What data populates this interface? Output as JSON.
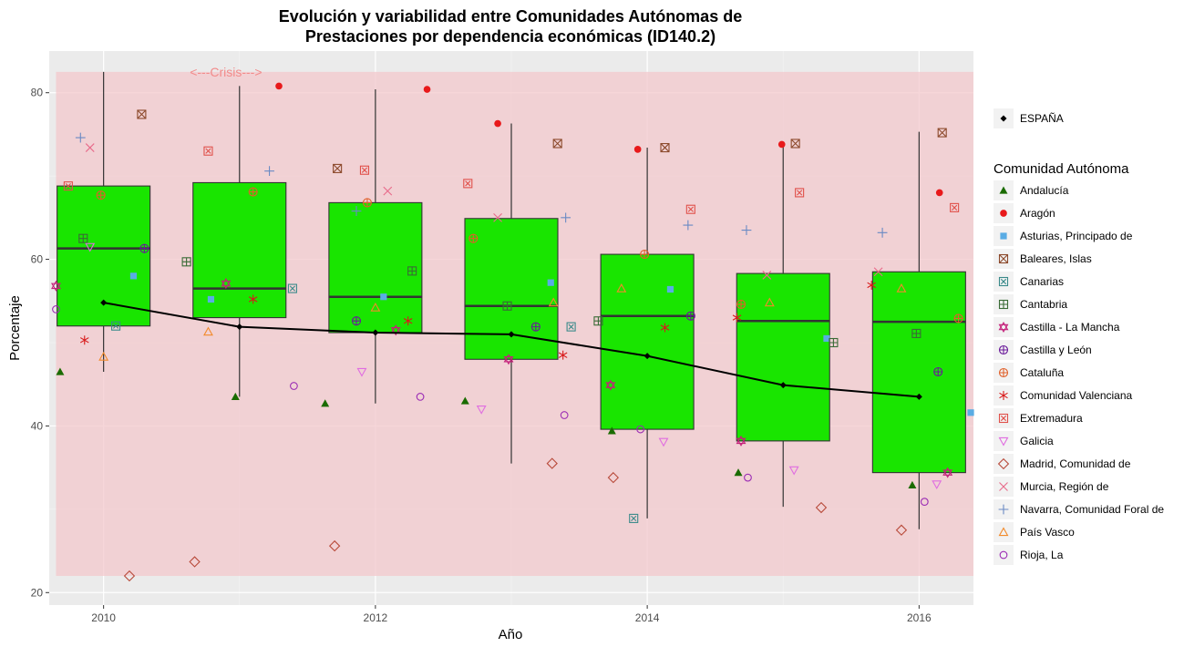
{
  "chart_data": {
    "type": "boxplot",
    "title_lines": [
      "Evolución y variabilidad entre Comunidades Autónomas de",
      "Prestaciones por dependencia económicas (ID140.2)"
    ],
    "xlabel": "Año",
    "ylabel": "Porcentaje",
    "x_ticks": [
      2010,
      2012,
      2014,
      2016
    ],
    "y_ticks": [
      20,
      40,
      60,
      80
    ],
    "xlim": [
      2009.6,
      2016.4
    ],
    "ylim": [
      18.5,
      85
    ],
    "grid": true,
    "colors": {
      "panel_bg": "#ebebeb",
      "crisis_band": "#f3c8cc",
      "box_fill": "#19e500",
      "box_stroke": "#000000",
      "median": "#333333",
      "espana_line": "#000000",
      "annotation": "#f28a8a"
    },
    "crisis_band": {
      "x": [
        2009.65,
        2016.4
      ],
      "y": [
        22,
        82.5
      ]
    },
    "annotation": {
      "text": "<---Crisis--->",
      "x": 2010.9,
      "y": 82.5
    },
    "boxes": [
      {
        "year": 2010,
        "q1": 52.0,
        "median": 61.3,
        "q3": 68.8,
        "whisker_low": 46.5,
        "whisker_high": 82.5
      },
      {
        "year": 2011,
        "q1": 53.0,
        "median": 56.5,
        "q3": 69.2,
        "whisker_low": 43.5,
        "whisker_high": 80.8
      },
      {
        "year": 2012,
        "q1": 51.2,
        "median": 55.5,
        "q3": 66.8,
        "whisker_low": 42.7,
        "whisker_high": 80.4
      },
      {
        "year": 2013,
        "q1": 48.0,
        "median": 54.4,
        "q3": 64.9,
        "whisker_low": 35.5,
        "whisker_high": 76.3
      },
      {
        "year": 2014,
        "q1": 39.6,
        "median": 53.2,
        "q3": 60.6,
        "whisker_low": 28.9,
        "whisker_high": 73.4
      },
      {
        "year": 2015,
        "q1": 38.2,
        "median": 52.6,
        "q3": 58.3,
        "whisker_low": 30.3,
        "whisker_high": 74.0
      },
      {
        "year": 2016,
        "q1": 34.4,
        "median": 52.5,
        "q3": 58.5,
        "whisker_low": 27.6,
        "whisker_high": 75.3
      }
    ],
    "espana": {
      "name": "ESPAÑA",
      "x": [
        2010,
        2011,
        2012,
        2013,
        2014,
        2015,
        2016
      ],
      "y": [
        54.8,
        51.9,
        51.2,
        51.0,
        48.4,
        44.9,
        43.5
      ]
    },
    "legend_title": "Comunidad Autónoma",
    "series": [
      {
        "name": "Andalucía",
        "shape": "triangle-filled",
        "color": "#1a6b00",
        "x": [
          2009.68,
          2010.97,
          2011.63,
          2012.66,
          2013.74,
          2014.67,
          2015.95
        ],
        "y": [
          46.5,
          43.5,
          42.7,
          43.0,
          39.4,
          34.4,
          32.9
        ]
      },
      {
        "name": "Aragón",
        "shape": "circle-filled",
        "color": "#e8191b",
        "x": [
          2011.29,
          2012.38,
          2012.9,
          2013.93,
          2014.99,
          2016.15
        ],
        "y": [
          80.8,
          80.4,
          76.3,
          73.2,
          73.8,
          68.0
        ]
      },
      {
        "name": "Asturias, Principado de",
        "shape": "square-filled",
        "color": "#5aace4",
        "x": [
          2010.22,
          2010.79,
          2012.06,
          2013.29,
          2014.17,
          2015.32,
          2016.38
        ],
        "y": [
          58.0,
          55.2,
          55.5,
          57.2,
          56.4,
          50.5,
          41.6
        ]
      },
      {
        "name": "Baleares, Islas",
        "shape": "square-cross",
        "color": "#8c4a2c",
        "x": [
          2010.28,
          2011.72,
          2013.34,
          2014.13,
          2015.09,
          2016.17
        ],
        "y": [
          77.4,
          70.9,
          73.9,
          73.4,
          73.9,
          75.2
        ]
      },
      {
        "name": "Canarias",
        "shape": "square-x",
        "color": "#3a8a8a",
        "x": [
          2010.09,
          2011.39,
          2013.44,
          2013.9
        ],
        "y": [
          52.0,
          56.5,
          51.9,
          28.9
        ]
      },
      {
        "name": "Cantabria",
        "shape": "square-plus",
        "color": "#3a6b36",
        "x": [
          2009.85,
          2010.61,
          2012.27,
          2012.97,
          2013.64,
          2015.37,
          2015.98
        ],
        "y": [
          62.5,
          59.7,
          58.6,
          54.4,
          52.6,
          50.0,
          51.1
        ]
      },
      {
        "name": "Castilla - La Mancha",
        "shape": "star-david",
        "color": "#c4207a",
        "x": [
          2009.65,
          2010.9,
          2012.15,
          2012.98,
          2013.73,
          2014.69,
          2016.21
        ],
        "y": [
          56.8,
          57.1,
          51.5,
          48.0,
          44.9,
          38.2,
          34.4
        ]
      },
      {
        "name": "Castilla y León",
        "shape": "circle-plus",
        "color": "#6a1a9a",
        "x": [
          2010.3,
          2011.86,
          2013.18,
          2014.32,
          2016.14
        ],
        "y": [
          61.3,
          52.6,
          51.9,
          53.2,
          46.5
        ]
      },
      {
        "name": "Cataluña",
        "shape": "circle-plus",
        "color": "#e0602a",
        "x": [
          2009.98,
          2011.1,
          2011.94,
          2012.72,
          2013.98,
          2014.69,
          2016.29
        ],
        "y": [
          67.7,
          68.1,
          66.8,
          62.5,
          60.6,
          54.6,
          52.9
        ]
      },
      {
        "name": "Comunidad Valenciana",
        "shape": "asterisk",
        "color": "#d81a1a",
        "x": [
          2009.86,
          2011.1,
          2012.24,
          2013.38,
          2014.13,
          2014.66,
          2015.65
        ],
        "y": [
          50.3,
          55.2,
          52.6,
          48.5,
          51.8,
          53.0,
          56.9
        ]
      },
      {
        "name": "Extremadura",
        "shape": "square-x",
        "color": "#e0504a",
        "x": [
          2009.74,
          2010.77,
          2011.92,
          2012.68,
          2014.32,
          2015.12,
          2016.26
        ],
        "y": [
          68.8,
          73.0,
          70.7,
          69.1,
          66.0,
          68.0,
          66.2
        ]
      },
      {
        "name": "Galicia",
        "shape": "triangle-down",
        "color": "#e06ee0",
        "x": [
          2009.9,
          2011.9,
          2012.78,
          2014.12,
          2015.08,
          2016.13
        ],
        "y": [
          61.5,
          46.5,
          42.0,
          38.1,
          34.7,
          33.0
        ]
      },
      {
        "name": "Madrid, Comunidad de",
        "shape": "diamond",
        "color": "#b84a3a",
        "x": [
          2010.19,
          2010.67,
          2011.7,
          2013.3,
          2013.75,
          2015.28,
          2015.87
        ],
        "y": [
          22.0,
          23.7,
          25.6,
          35.5,
          33.8,
          30.2,
          27.5
        ]
      },
      {
        "name": "Murcia, Región de",
        "shape": "x",
        "color": "#e86a8a",
        "x": [
          2009.9,
          2012.09,
          2012.9,
          2014.88,
          2015.7
        ],
        "y": [
          73.4,
          68.2,
          65.0,
          58.1,
          58.5
        ]
      },
      {
        "name": "Navarra, Comunidad Foral de",
        "shape": "plus",
        "color": "#6a8ac4",
        "x": [
          2009.83,
          2011.22,
          2011.86,
          2013.4,
          2014.3,
          2014.73,
          2015.73
        ],
        "y": [
          74.6,
          70.6,
          65.8,
          65.0,
          64.1,
          63.5,
          63.2
        ]
      },
      {
        "name": "País Vasco",
        "shape": "triangle-up",
        "color": "#f28a2a",
        "x": [
          2010.0,
          2010.77,
          2012.0,
          2013.31,
          2013.81,
          2014.9,
          2015.87
        ],
        "y": [
          48.3,
          51.3,
          54.2,
          54.8,
          56.5,
          54.8,
          56.5
        ]
      },
      {
        "name": "Rioja, La",
        "shape": "circle",
        "color": "#9a2ab4",
        "x": [
          2009.65,
          2011.4,
          2012.33,
          2013.39,
          2013.95,
          2014.74,
          2016.04
        ],
        "y": [
          54.0,
          44.8,
          43.5,
          41.3,
          39.6,
          33.8,
          30.9
        ]
      }
    ]
  }
}
